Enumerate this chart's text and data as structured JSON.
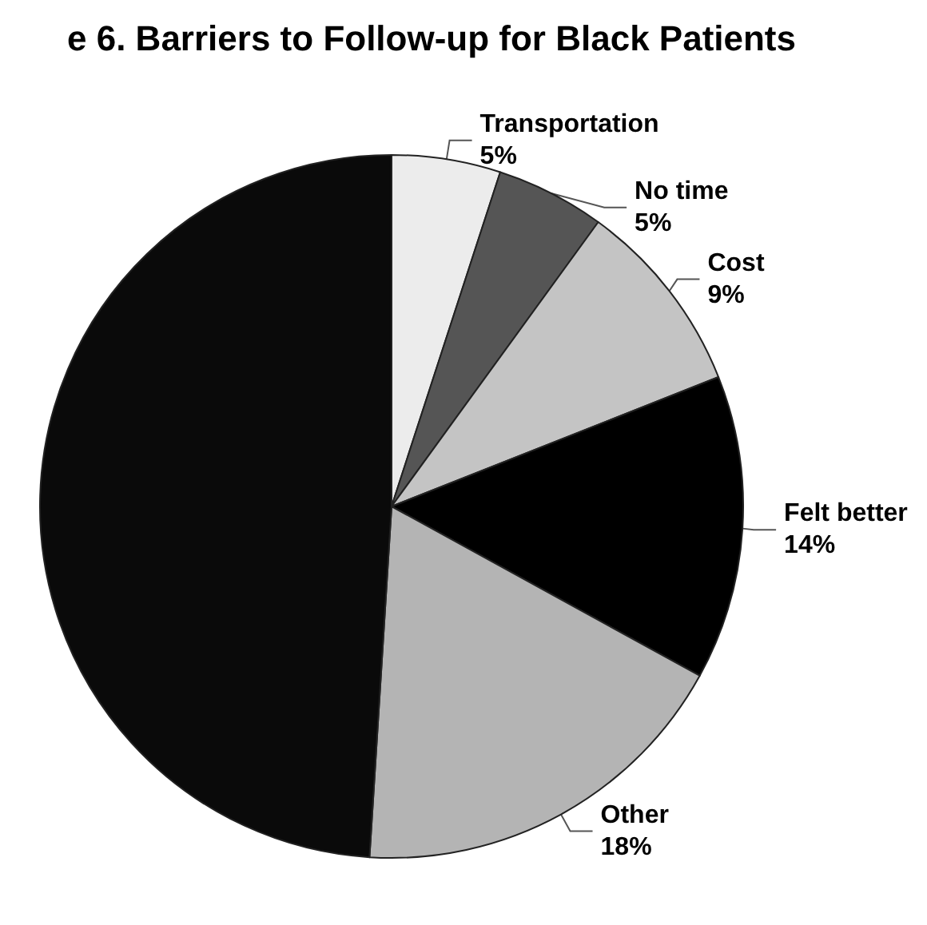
{
  "chart_data": {
    "type": "pie",
    "title": "e 6. Barriers to Follow-up for Black Patients",
    "categories": [
      "Transportation",
      "No time",
      "Cost",
      "Felt better",
      "Other",
      null
    ],
    "values": [
      5,
      5,
      9,
      14,
      18,
      49
    ],
    "value_labels": [
      "5%",
      "5%",
      "9%",
      "14%",
      "18%",
      null
    ],
    "colors": [
      "#ececec",
      "#555555",
      "#c4c4c4",
      "#000000",
      "#b4b4b4",
      "#0a0a0a"
    ],
    "legend": false
  }
}
